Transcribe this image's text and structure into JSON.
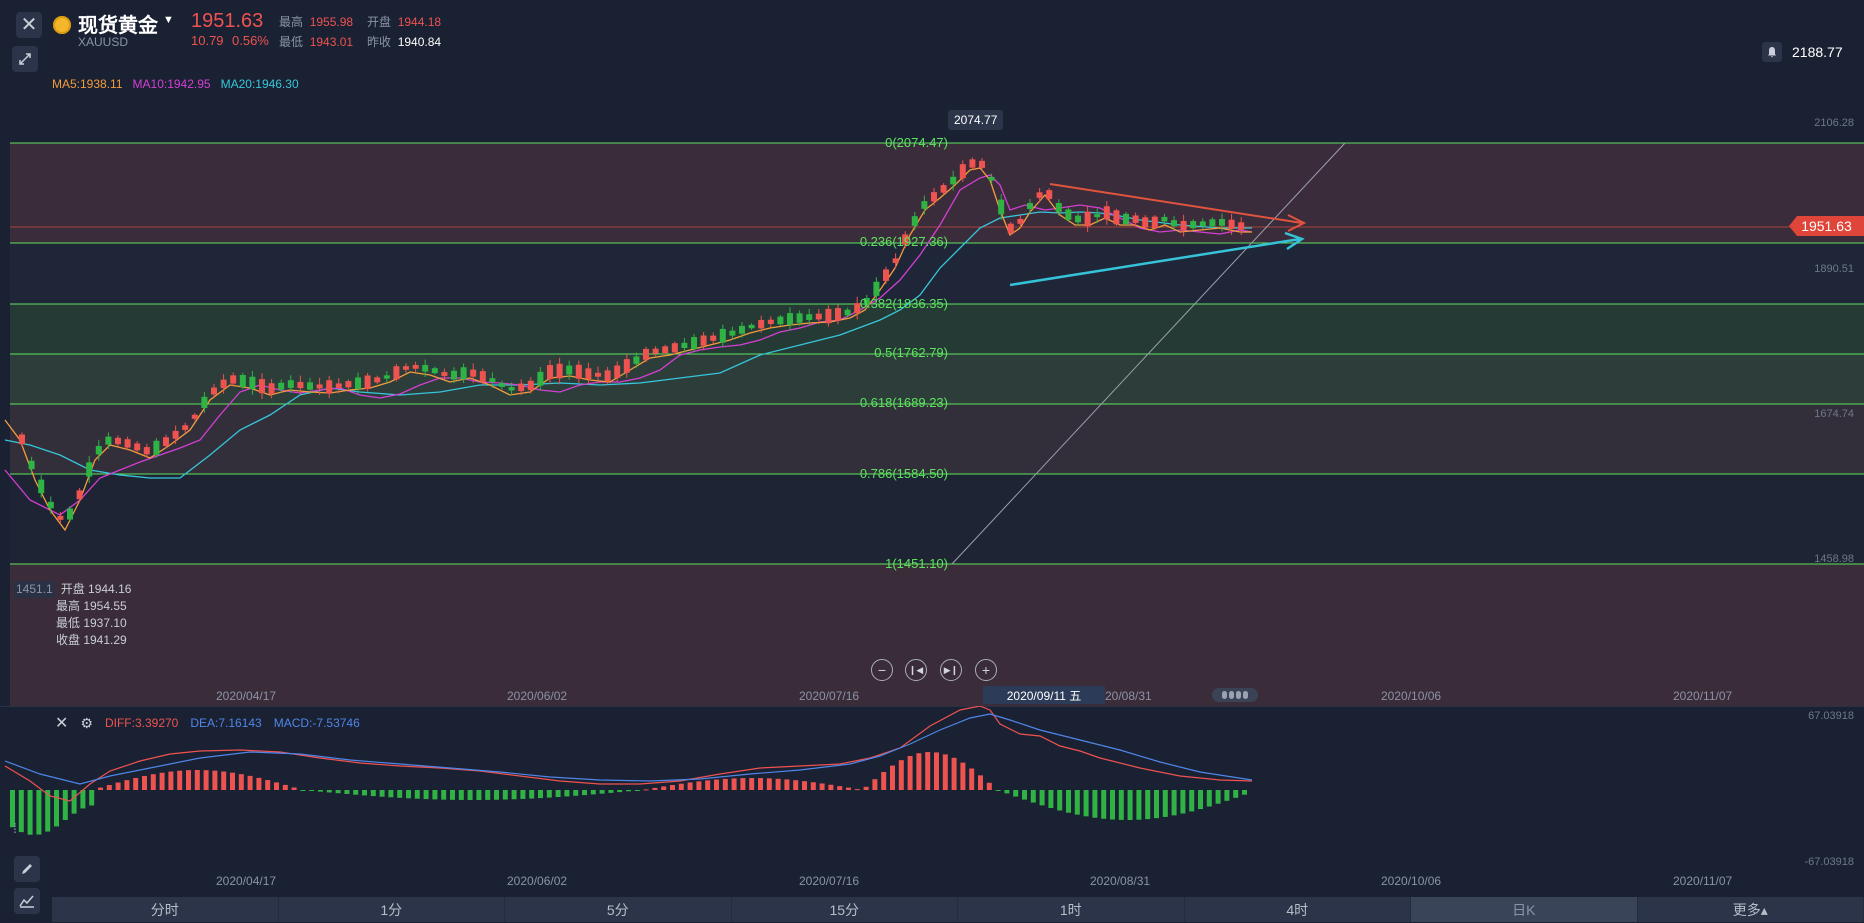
{
  "symbol": {
    "name": "现货黄金",
    "code": "XAUUSD",
    "price": "1951.63",
    "change": "10.79",
    "change_pct": "0.56%"
  },
  "stats": {
    "high_label": "最高",
    "high": "1955.98",
    "open_label": "开盘",
    "open": "1944.18",
    "low_label": "最低",
    "low": "1943.01",
    "prev_label": "昨收",
    "prev": "1940.84"
  },
  "alarm": {
    "value": "2188.77"
  },
  "ma_legend": {
    "ma5": "MA5:1938.11",
    "ma10": "MA10:1942.95",
    "ma20": "MA20:1946.30"
  },
  "price_axis": {
    "labels": [
      "2106.28",
      "1890.51",
      "1674.74",
      "1458.98"
    ],
    "last_price": "1951.63"
  },
  "peak_tag": "2074.77",
  "fib_levels": [
    {
      "label": "0(2074.47)",
      "price": 2074.47
    },
    {
      "label": "0.236(1927.36)",
      "price": 1927.36
    },
    {
      "label": "0.382(1836.35)",
      "price": 1836.35
    },
    {
      "label": "0.5(1762.79)",
      "price": 1762.79
    },
    {
      "label": "0.618(1689.23)",
      "price": 1689.23
    },
    {
      "label": "0.786(1584.50)",
      "price": 1584.5
    },
    {
      "label": "1(1451.10)",
      "price": 1451.1
    }
  ],
  "info_box": {
    "side_value": "1451.1",
    "open": "开盘 1944.16",
    "high": "最高 1954.55",
    "low": "最低 1937.10",
    "close": "收盘 1941.29"
  },
  "dates": [
    "2020/04/17",
    "2020/06/02",
    "2020/07/16",
    "2020/08/31",
    "2020/10/06",
    "2020/11/07"
  ],
  "cursor_date": "2020/09/11 五",
  "cursor_date_tail": "20/08/31",
  "macd": {
    "diff": "DIFF:3.39270",
    "dea": "DEA:7.16143",
    "macd": "MACD:-7.53746",
    "axis_max": "67.03918",
    "axis_min": "-67.03918"
  },
  "tabs": [
    "分时",
    "1分",
    "5分",
    "15分",
    "1时",
    "4时",
    "日K",
    "更多▴"
  ],
  "colors": {
    "background": "#1a2133",
    "up": "#ef5350",
    "down": "#2fb344",
    "fib_line": "#5ee35e",
    "ma5": "#f39c3c",
    "ma10": "#d43fd4",
    "ma20": "#36c6d9"
  }
}
